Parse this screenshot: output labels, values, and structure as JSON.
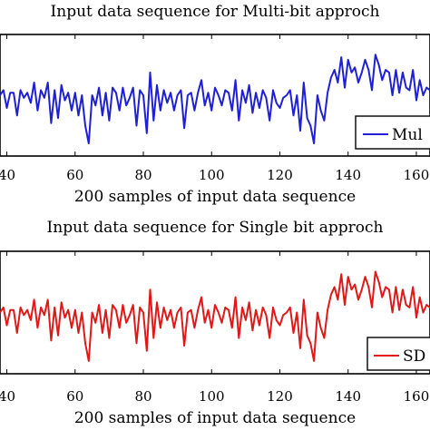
{
  "chart_data": [
    {
      "type": "line",
      "title": "Input data sequence for Multi-bit approch",
      "xlabel": "200 samples of input data sequence",
      "xlim": [
        38,
        164
      ],
      "ylim": [
        -1.2,
        1.2
      ],
      "xticks": [
        40,
        60,
        80,
        100,
        120,
        140,
        160
      ],
      "xtick_labels": [
        "40",
        "60",
        "80",
        "100",
        "120",
        "140",
        "160"
      ],
      "legend": "right",
      "legend_label": "Mul",
      "color": "#1f1fd6",
      "series": [
        {
          "name": "Mul",
          "x": [
            38,
            39,
            40,
            41,
            42,
            43,
            44,
            45,
            46,
            47,
            48,
            49,
            50,
            51,
            52,
            53,
            54,
            55,
            56,
            57,
            58,
            59,
            60,
            61,
            62,
            63,
            64,
            65,
            66,
            67,
            68,
            69,
            70,
            71,
            72,
            73,
            74,
            75,
            76,
            77,
            78,
            79,
            80,
            81,
            82,
            83,
            84,
            85,
            86,
            87,
            88,
            89,
            90,
            91,
            92,
            93,
            94,
            95,
            96,
            97,
            98,
            99,
            100,
            101,
            102,
            103,
            104,
            105,
            106,
            107,
            108,
            109,
            110,
            111,
            112,
            113,
            114,
            115,
            116,
            117,
            118,
            119,
            120,
            121,
            122,
            123,
            124,
            125,
            126,
            127,
            128,
            129,
            130,
            131,
            132,
            133,
            134,
            135,
            136,
            137,
            138,
            139,
            140,
            141,
            142,
            143,
            144,
            145,
            146,
            147,
            148,
            149,
            150,
            151,
            152,
            153,
            154,
            155,
            156,
            157,
            158,
            159,
            160,
            161,
            162,
            163,
            164
          ],
          "y": [
            0.0,
            0.1,
            -0.25,
            0.05,
            0.05,
            -0.4,
            0.1,
            -0.05,
            0.05,
            -0.15,
            0.25,
            -0.3,
            0.1,
            -0.05,
            0.25,
            -0.55,
            0.1,
            -0.45,
            0.2,
            -0.1,
            0.05,
            -0.3,
            0.05,
            -0.4,
            0.0,
            -0.6,
            -0.95,
            0.0,
            -0.2,
            0.15,
            -0.4,
            0.05,
            -0.5,
            0.15,
            0.05,
            -0.3,
            0.15,
            -0.2,
            -0.05,
            0.15,
            -0.6,
            0.1,
            0.0,
            -0.75,
            0.45,
            -0.5,
            0.2,
            -0.3,
            0.1,
            -0.15,
            0.05,
            -0.3,
            0.0,
            0.1,
            -0.65,
            0.0,
            0.05,
            -0.3,
            0.05,
            0.3,
            -0.2,
            0.05,
            -0.3,
            0.15,
            0.0,
            -0.2,
            0.1,
            0.05,
            -0.3,
            0.3,
            -0.5,
            0.1,
            -0.15,
            0.2,
            -0.35,
            0.05,
            -0.25,
            0.1,
            -0.05,
            -0.5,
            0.1,
            -0.15,
            -0.25,
            -0.05,
            0.0,
            0.1,
            -0.4,
            0.0,
            -0.7,
            0.25,
            -0.45,
            -0.6,
            -0.95,
            0.0,
            -0.3,
            -0.5,
            0.05,
            0.35,
            0.5,
            0.25,
            0.75,
            0.15,
            0.7,
            0.45,
            0.55,
            0.25,
            0.45,
            0.7,
            0.5,
            0.1,
            0.8,
            0.6,
            0.3,
            0.5,
            0.45,
            0.0,
            0.5,
            0.05,
            0.45,
            0.15,
            0.1,
            0.5,
            -0.1,
            0.3,
            0.0,
            0.15,
            0.1
          ]
        }
      ]
    },
    {
      "type": "line",
      "title": "Input data sequence for Single bit approch",
      "xlabel": "200 samples of input data sequence",
      "xlim": [
        38,
        164
      ],
      "ylim": [
        -1.2,
        1.2
      ],
      "xticks": [
        40,
        60,
        80,
        100,
        120,
        140,
        160
      ],
      "xtick_labels": [
        "40",
        "60",
        "80",
        "100",
        "120",
        "140",
        "160"
      ],
      "legend": "right",
      "legend_label": "SD",
      "color": "#e01818",
      "series": [
        {
          "name": "SD",
          "x": [
            38,
            39,
            40,
            41,
            42,
            43,
            44,
            45,
            46,
            47,
            48,
            49,
            50,
            51,
            52,
            53,
            54,
            55,
            56,
            57,
            58,
            59,
            60,
            61,
            62,
            63,
            64,
            65,
            66,
            67,
            68,
            69,
            70,
            71,
            72,
            73,
            74,
            75,
            76,
            77,
            78,
            79,
            80,
            81,
            82,
            83,
            84,
            85,
            86,
            87,
            88,
            89,
            90,
            91,
            92,
            93,
            94,
            95,
            96,
            97,
            98,
            99,
            100,
            101,
            102,
            103,
            104,
            105,
            106,
            107,
            108,
            109,
            110,
            111,
            112,
            113,
            114,
            115,
            116,
            117,
            118,
            119,
            120,
            121,
            122,
            123,
            124,
            125,
            126,
            127,
            128,
            129,
            130,
            131,
            132,
            133,
            134,
            135,
            136,
            137,
            138,
            139,
            140,
            141,
            142,
            143,
            144,
            145,
            146,
            147,
            148,
            149,
            150,
            151,
            152,
            153,
            154,
            155,
            156,
            157,
            158,
            159,
            160,
            161,
            162,
            163,
            164
          ],
          "y": [
            0.0,
            0.1,
            -0.25,
            0.05,
            0.05,
            -0.4,
            0.1,
            -0.05,
            0.05,
            -0.15,
            0.25,
            -0.3,
            0.1,
            -0.05,
            0.25,
            -0.55,
            0.1,
            -0.45,
            0.2,
            -0.1,
            0.05,
            -0.3,
            0.05,
            -0.4,
            0.0,
            -0.6,
            -0.95,
            0.0,
            -0.2,
            0.15,
            -0.4,
            0.05,
            -0.5,
            0.15,
            0.05,
            -0.3,
            0.15,
            -0.2,
            -0.05,
            0.15,
            -0.6,
            0.1,
            0.0,
            -0.75,
            0.45,
            -0.5,
            0.2,
            -0.3,
            0.1,
            -0.15,
            0.05,
            -0.3,
            0.0,
            0.1,
            -0.65,
            0.0,
            0.05,
            -0.3,
            0.05,
            0.3,
            -0.2,
            0.05,
            -0.3,
            0.15,
            0.0,
            -0.2,
            0.1,
            0.05,
            -0.3,
            0.3,
            -0.5,
            0.1,
            -0.15,
            0.2,
            -0.35,
            0.05,
            -0.25,
            0.1,
            -0.05,
            -0.5,
            0.1,
            -0.15,
            -0.25,
            -0.05,
            0.0,
            0.1,
            -0.4,
            0.0,
            -0.7,
            0.25,
            -0.45,
            -0.6,
            -0.95,
            0.0,
            -0.3,
            -0.5,
            0.05,
            0.35,
            0.5,
            0.25,
            0.75,
            0.15,
            0.7,
            0.45,
            0.55,
            0.25,
            0.45,
            0.7,
            0.5,
            0.1,
            0.8,
            0.6,
            0.3,
            0.5,
            0.45,
            0.0,
            0.5,
            0.05,
            0.45,
            0.15,
            0.1,
            0.5,
            -0.1,
            0.3,
            0.0,
            0.15,
            0.1
          ]
        }
      ]
    }
  ]
}
